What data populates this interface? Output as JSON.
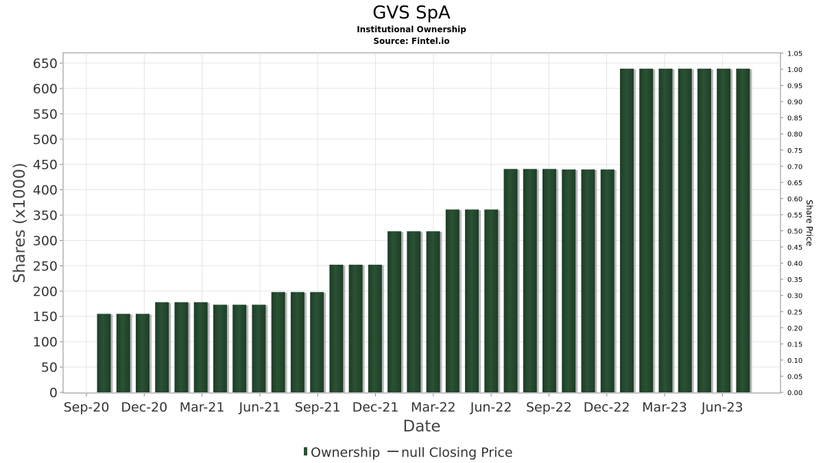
{
  "chart_data": {
    "type": "bar",
    "title": "GVS SpA",
    "subtitles": [
      "Institutional Ownership",
      "Source: Fintel.io"
    ],
    "xlabel": "Date",
    "ylabel": "Shares (x1000)",
    "y2label": "Share Price",
    "ylim": [
      0,
      670
    ],
    "y2lim": [
      0,
      1.05
    ],
    "yticks": [
      "0",
      "50",
      "100",
      "150",
      "200",
      "250",
      "300",
      "350",
      "400",
      "450",
      "500",
      "550",
      "600",
      "650"
    ],
    "y2ticks": [
      "0.00",
      "0.05",
      "0.10",
      "0.15",
      "0.20",
      "0.25",
      "0.30",
      "0.35",
      "0.40",
      "0.45",
      "0.50",
      "0.55",
      "0.60",
      "0.65",
      "0.70",
      "0.75",
      "0.80",
      "0.85",
      "0.90",
      "0.95",
      "1.00",
      "1.05"
    ],
    "xticks": [
      "Sep-20",
      "Dec-20",
      "Mar-21",
      "Jun-21",
      "Sep-21",
      "Dec-21",
      "Mar-22",
      "Jun-22",
      "Sep-22",
      "Dec-22",
      "Mar-23",
      "Jun-23"
    ],
    "grid": true,
    "legend_position": "bottom",
    "bar_color": "#2a5234",
    "series": [
      {
        "name": "Ownership",
        "values": [
          155,
          155,
          155,
          178,
          178,
          178,
          173,
          173,
          173,
          198,
          198,
          198,
          252,
          252,
          252,
          318,
          318,
          318,
          361,
          361,
          361,
          441,
          441,
          441,
          440,
          440,
          440,
          639,
          639,
          639,
          639,
          639,
          639,
          639
        ]
      },
      {
        "name": "null Closing Price",
        "values": []
      }
    ]
  }
}
